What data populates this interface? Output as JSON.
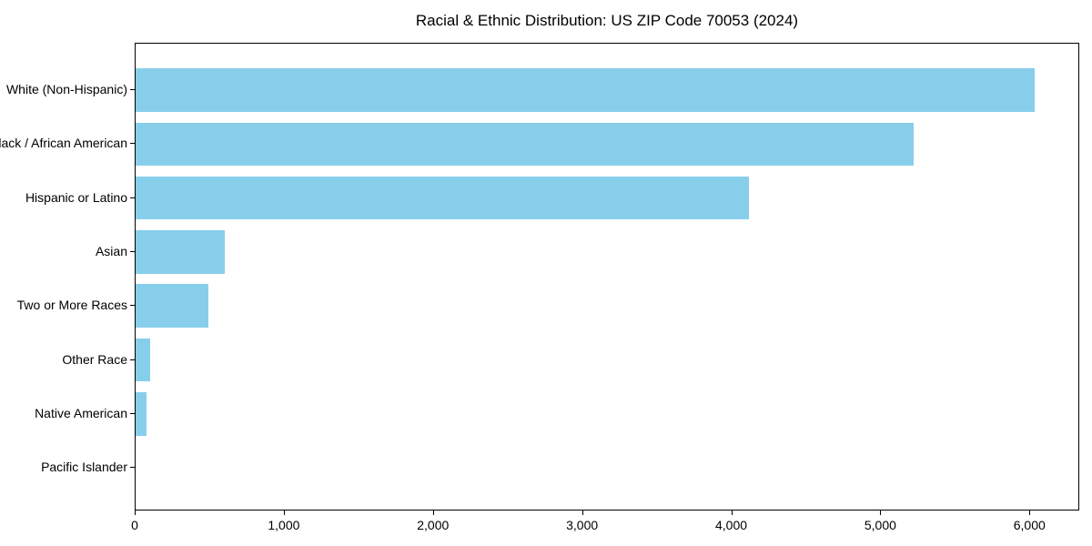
{
  "chart_data": {
    "type": "bar",
    "orientation": "horizontal",
    "title": "Racial & Ethnic Distribution: US ZIP Code 70053 (2024)",
    "categories": [
      "White (Non-Hispanic)",
      "Black / African American",
      "Hispanic or Latino",
      "Asian",
      "Two or More Races",
      "Other Race",
      "Native American",
      "Pacific Islander"
    ],
    "values": [
      6030,
      5215,
      4110,
      600,
      490,
      100,
      75,
      0
    ],
    "xlabel": "",
    "ylabel": "",
    "xlim": [
      0,
      6334
    ],
    "x_ticks": [
      0,
      1000,
      2000,
      3000,
      4000,
      5000,
      6000
    ],
    "x_tick_labels": [
      "0",
      "1,000",
      "2,000",
      "3,000",
      "4,000",
      "5,000",
      "6,000"
    ],
    "bar_color": "#87CEEB",
    "spine_color": "#000000",
    "grid": false,
    "legend_position": "none"
  }
}
